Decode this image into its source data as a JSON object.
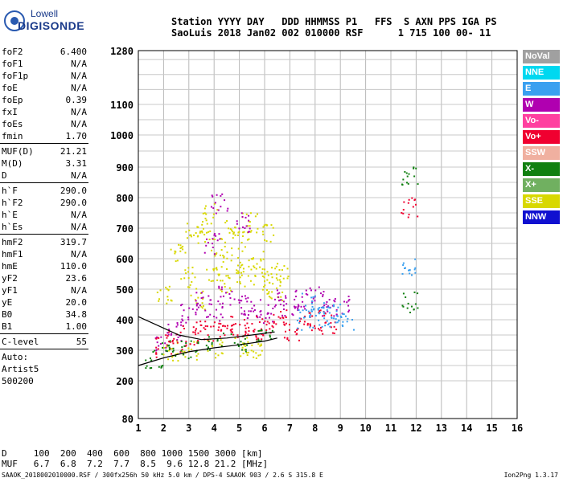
{
  "logo": {
    "line1": "Lowell",
    "line2": "DIGISONDE"
  },
  "header": {
    "line1": "Station YYYY DAY   DDD HHMMSS P1   FFS  S AXN PPS IGA PS",
    "line2": "SaoLuis 2018 Jan02 002 010000 RSF      1 715 100 00- 11"
  },
  "params": {
    "group1": [
      {
        "name": "foF2",
        "value": "6.400"
      },
      {
        "name": "foF1",
        "value": "N/A"
      },
      {
        "name": "foF1p",
        "value": "N/A"
      },
      {
        "name": "foE",
        "value": "N/A"
      },
      {
        "name": "foEp",
        "value": "0.39"
      },
      {
        "name": "fxI",
        "value": "N/A"
      },
      {
        "name": "foEs",
        "value": "N/A"
      },
      {
        "name": "fmin",
        "value": "1.70"
      }
    ],
    "group2": [
      {
        "name": "MUF(D)",
        "value": "21.21"
      },
      {
        "name": "M(D)",
        "value": "3.31"
      },
      {
        "name": "D",
        "value": "N/A"
      }
    ],
    "group3": [
      {
        "name": "h`F",
        "value": "290.0"
      },
      {
        "name": "h`F2",
        "value": "290.0"
      },
      {
        "name": "h`E",
        "value": "N/A"
      },
      {
        "name": "h`Es",
        "value": "N/A"
      }
    ],
    "group4": [
      {
        "name": "hmF2",
        "value": "319.7"
      },
      {
        "name": "hmF1",
        "value": "N/A"
      },
      {
        "name": "hmE",
        "value": "110.0"
      },
      {
        "name": "yF2",
        "value": "23.6"
      },
      {
        "name": "yF1",
        "value": "N/A"
      },
      {
        "name": "yE",
        "value": "20.0"
      },
      {
        "name": "B0",
        "value": "34.8"
      },
      {
        "name": "B1",
        "value": "1.00"
      }
    ],
    "group5": [
      {
        "name": "C-level",
        "value": "55"
      }
    ],
    "auto": [
      "Auto:",
      "Artist5",
      "500200"
    ]
  },
  "legend": [
    {
      "label": "NoVal",
      "color": "#a0a0a0"
    },
    {
      "label": "NNE",
      "color": "#00d8f0"
    },
    {
      "label": "E",
      "color": "#3aa0f0"
    },
    {
      "label": "W",
      "color": "#b000b0"
    },
    {
      "label": "Vo-",
      "color": "#ff40a0"
    },
    {
      "label": "Vo+",
      "color": "#f00030"
    },
    {
      "label": "SSW",
      "color": "#f0b0a0"
    },
    {
      "label": "X-",
      "color": "#108010"
    },
    {
      "label": "X+",
      "color": "#70b060"
    },
    {
      "label": "SSE",
      "color": "#d8d800"
    },
    {
      "label": "NNW",
      "color": "#1010d0"
    }
  ],
  "footer": {
    "line1": "D     100  200  400  600  800 1000 1500 3000 [km]",
    "line2": "MUF   6.7  6.8  7.2  7.7  8.5  9.6 12.8 21.2 [MHz]",
    "file": "SAAOK_2018002010000.RSF / 300fx256h 50 kHz 5.0 km / DPS-4 SAAOK 903 / 2.6 S 315.8 E",
    "version": "Ion2Png 1.3.17"
  },
  "chart_data": {
    "type": "scatter",
    "x_ticks": [
      "1",
      "2",
      "3",
      "4",
      "5",
      "6",
      "7",
      "8",
      "9",
      "10",
      "11",
      "12",
      "13",
      "14",
      "15",
      "16"
    ],
    "y_ticks": [
      "80",
      "200",
      "300",
      "400",
      "500",
      "600",
      "700",
      "800",
      "900",
      "1000",
      "1100",
      "1280"
    ],
    "xlim": [
      1,
      16
    ],
    "ylim": [
      80,
      1280
    ],
    "series": [
      {
        "name": "SSE",
        "color": "#d8d800",
        "points": [
          [
            2.0,
            490
          ],
          [
            2.5,
            620
          ],
          [
            3.0,
            540
          ],
          [
            3.2,
            700
          ],
          [
            3.4,
            470
          ],
          [
            3.6,
            680
          ],
          [
            3.8,
            750
          ],
          [
            4.0,
            560
          ],
          [
            4.2,
            640
          ],
          [
            4.4,
            520
          ],
          [
            4.6,
            700
          ],
          [
            4.8,
            580
          ],
          [
            5.0,
            660
          ],
          [
            5.2,
            540
          ],
          [
            5.4,
            720
          ],
          [
            5.6,
            600
          ],
          [
            5.8,
            540
          ],
          [
            6.0,
            680
          ],
          [
            6.2,
            520
          ],
          [
            6.4,
            500
          ],
          [
            6.6,
            560
          ],
          [
            2.2,
            300
          ],
          [
            3.0,
            300
          ],
          [
            4.0,
            310
          ],
          [
            5.0,
            310
          ],
          [
            5.8,
            300
          ]
        ]
      },
      {
        "name": "W",
        "color": "#b000b0",
        "points": [
          [
            2.0,
            330
          ],
          [
            2.5,
            360
          ],
          [
            3.0,
            420
          ],
          [
            3.5,
            460
          ],
          [
            4.0,
            430
          ],
          [
            4.5,
            480
          ],
          [
            5.0,
            450
          ],
          [
            5.5,
            440
          ],
          [
            6.0,
            420
          ],
          [
            6.5,
            470
          ],
          [
            7.0,
            440
          ],
          [
            7.5,
            470
          ],
          [
            8.0,
            480
          ],
          [
            8.5,
            440
          ],
          [
            9.0,
            450
          ],
          [
            4.2,
            780
          ],
          [
            3.9,
            650
          ],
          [
            5.1,
            720
          ]
        ]
      },
      {
        "name": "Vo+",
        "color": "#f00030",
        "points": [
          [
            2.0,
            310
          ],
          [
            2.4,
            330
          ],
          [
            3.0,
            350
          ],
          [
            3.5,
            370
          ],
          [
            4.0,
            360
          ],
          [
            4.5,
            380
          ],
          [
            5.0,
            370
          ],
          [
            5.5,
            360
          ],
          [
            6.0,
            380
          ],
          [
            6.5,
            400
          ],
          [
            7.0,
            360
          ],
          [
            7.5,
            380
          ],
          [
            8.0,
            400
          ],
          [
            8.5,
            390
          ],
          [
            11.7,
            770
          ]
        ]
      },
      {
        "name": "E",
        "color": "#3aa0f0",
        "points": [
          [
            7.6,
            400
          ],
          [
            8.0,
            430
          ],
          [
            8.4,
            410
          ],
          [
            8.8,
            420
          ],
          [
            9.2,
            400
          ],
          [
            7.8,
            460
          ],
          [
            11.7,
            570
          ]
        ]
      },
      {
        "name": "X-",
        "color": "#108010",
        "points": [
          [
            1.6,
            270
          ],
          [
            2.2,
            300
          ],
          [
            3.0,
            310
          ],
          [
            4.0,
            330
          ],
          [
            5.0,
            330
          ],
          [
            6.0,
            340
          ],
          [
            11.7,
            870
          ],
          [
            11.7,
            460
          ]
        ]
      }
    ],
    "traces": [
      {
        "name": "ionogram-fit",
        "points": [
          [
            1.0,
            250
          ],
          [
            2.0,
            275
          ],
          [
            3.0,
            295
          ],
          [
            4.0,
            308
          ],
          [
            5.0,
            318
          ],
          [
            6.0,
            330
          ],
          [
            6.5,
            340
          ]
        ]
      },
      {
        "name": "ionogram-fit-upper",
        "points": [
          [
            1.0,
            410
          ],
          [
            1.8,
            380
          ],
          [
            2.6,
            350
          ],
          [
            3.5,
            335
          ],
          [
            4.5,
            340
          ],
          [
            5.5,
            350
          ],
          [
            6.4,
            360
          ]
        ]
      }
    ]
  }
}
